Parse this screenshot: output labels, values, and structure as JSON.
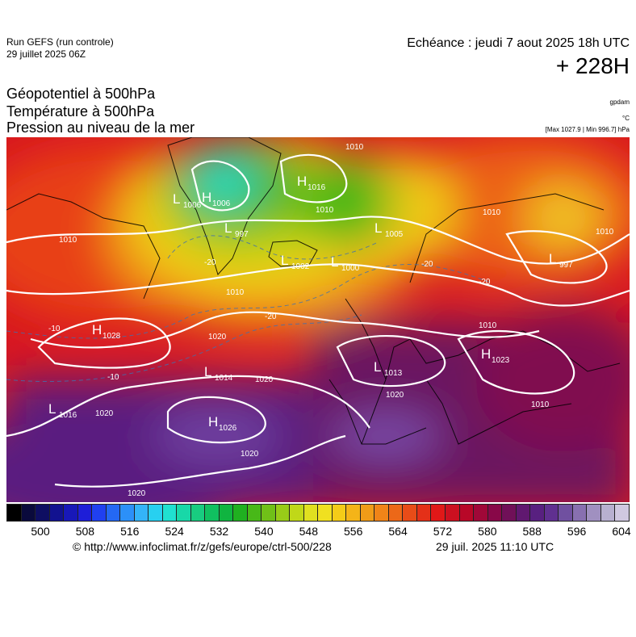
{
  "header": {
    "run_title": "Run GEFS (run controle)",
    "run_date": "29 juillet 2025 06Z",
    "valid_time": "Echéance : jeudi 7 aout 2025 18h UTC",
    "lead_time": "+ 228H"
  },
  "parameters": {
    "line1": "Géopotentiel à 500hPa",
    "line2": "Température à 500hPa",
    "line3": "Pression au niveau de la mer"
  },
  "units": {
    "geopotential": "gpdam",
    "temperature": "°C",
    "maxmin": "[Max 1027.9 | Min 996.7] hPa"
  },
  "pressure_centers": [
    {
      "type": "L",
      "value": "1006"
    },
    {
      "type": "H",
      "value": "1006"
    },
    {
      "type": "H",
      "value": "1016"
    },
    {
      "type": "L",
      "value": "997"
    },
    {
      "type": "L",
      "value": "1005"
    },
    {
      "type": "L",
      "value": "1002"
    },
    {
      "type": "L",
      "value": "1000"
    },
    {
      "type": "L",
      "value": "997"
    },
    {
      "type": "H",
      "value": "1028"
    },
    {
      "type": "L",
      "value": "1014"
    },
    {
      "type": "L",
      "value": "1013"
    },
    {
      "type": "H",
      "value": "1023"
    },
    {
      "type": "L",
      "value": "1016"
    },
    {
      "type": "H",
      "value": "1026"
    }
  ],
  "isobar_labels": [
    "1010",
    "1010",
    "1010",
    "1010",
    "1010",
    "1010",
    "1010",
    "1020",
    "1020",
    "1020",
    "1020",
    "1020",
    "1020",
    "1010"
  ],
  "isotherm_labels": [
    "-20",
    "-20",
    "-20",
    "-10",
    "-10",
    "-20"
  ],
  "colorbar": {
    "colors": [
      "#000000",
      "#0a0a3c",
      "#0e0e62",
      "#121290",
      "#1818b8",
      "#1e1ed8",
      "#2040f0",
      "#2468f4",
      "#2c90f8",
      "#34b4f8",
      "#28d0f0",
      "#20e0d0",
      "#18d8a8",
      "#18cc80",
      "#10c060",
      "#10b440",
      "#20b020",
      "#48b818",
      "#70c018",
      "#98cc18",
      "#c0d818",
      "#e0e020",
      "#f0e020",
      "#f4cc18",
      "#f4b418",
      "#f09c18",
      "#f08418",
      "#ec6818",
      "#e84c18",
      "#e43018",
      "#e01818",
      "#cc1020",
      "#b80828",
      "#a00838",
      "#880848",
      "#701058",
      "#601870",
      "#582080",
      "#603090",
      "#7050a0",
      "#8870b0",
      "#a090c0",
      "#b8b0d0",
      "#d0c8e0"
    ],
    "ticks": [
      "500",
      "508",
      "516",
      "524",
      "532",
      "540",
      "548",
      "556",
      "564",
      "572",
      "580",
      "588",
      "596",
      "604"
    ],
    "range": [
      500,
      604
    ]
  },
  "footer": {
    "url": "© http://www.infoclimat.fr/z/gefs/europe/ctrl-500/228",
    "generated": "29 juil. 2025 11:10 UTC"
  }
}
